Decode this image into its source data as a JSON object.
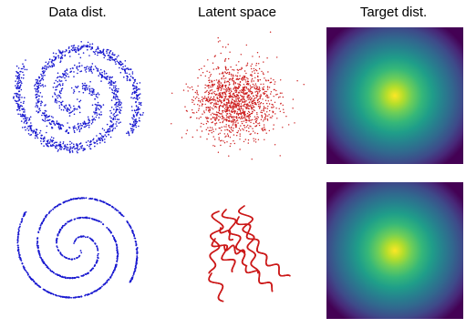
{
  "titles": {
    "data": "Data dist.",
    "latent": "Latent space",
    "target": "Target dist."
  },
  "colors": {
    "data_points": "#1a1ad0",
    "latent_points": "#cc1a1a",
    "density_low": "#440154",
    "density_high": "#fde725"
  },
  "panels": [
    {
      "row": 1,
      "column": "data",
      "style": "noisy two-arm spiral"
    },
    {
      "row": 1,
      "column": "latent",
      "style": "gaussian point cloud"
    },
    {
      "row": 1,
      "column": "target",
      "style": "gaussian density heatmap"
    },
    {
      "row": 2,
      "column": "data",
      "style": "clean two-arm spiral"
    },
    {
      "row": 2,
      "column": "latent",
      "style": "tangled curves"
    },
    {
      "row": 2,
      "column": "target",
      "style": "gaussian density heatmap"
    }
  ]
}
